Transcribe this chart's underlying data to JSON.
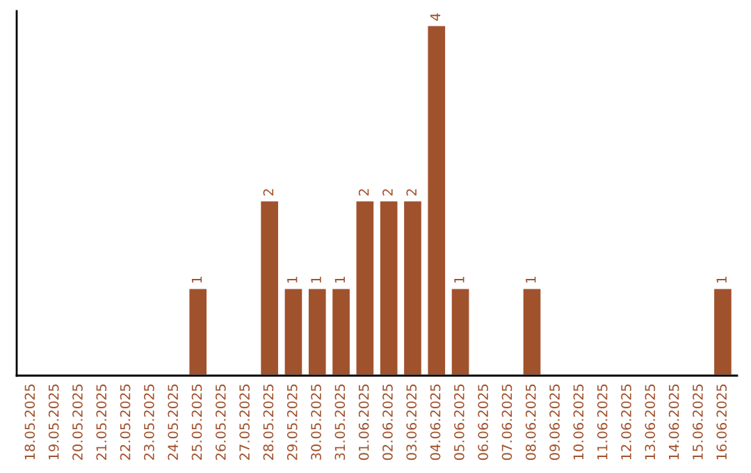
{
  "chart_data": {
    "type": "bar",
    "categories": [
      "18.05.2025",
      "19.05.2025",
      "20.05.2025",
      "21.05.2025",
      "22.05.2025",
      "23.05.2025",
      "24.05.2025",
      "25.05.2025",
      "26.05.2025",
      "27.05.2025",
      "28.05.2025",
      "29.05.2025",
      "30.05.2025",
      "31.05.2025",
      "01.06.2025",
      "02.06.2025",
      "03.06.2025",
      "04.06.2025",
      "05.06.2025",
      "06.06.2025",
      "07.06.2025",
      "08.06.2025",
      "09.06.2025",
      "10.06.2025",
      "11.06.2025",
      "12.06.2025",
      "13.06.2025",
      "14.06.2025",
      "15.06.2025",
      "16.06.2025"
    ],
    "values": [
      0,
      0,
      0,
      0,
      0,
      0,
      0,
      1,
      0,
      0,
      2,
      1,
      1,
      1,
      2,
      2,
      2,
      4,
      1,
      0,
      0,
      1,
      0,
      0,
      0,
      0,
      0,
      0,
      0,
      1
    ],
    "value_labels": [
      null,
      null,
      null,
      null,
      null,
      null,
      null,
      "1",
      null,
      null,
      "2",
      "1",
      "1",
      "1",
      "2",
      "2",
      "2",
      "4",
      "1",
      null,
      null,
      "1",
      null,
      null,
      null,
      null,
      null,
      null,
      null,
      "1"
    ],
    "color": "#a0522d",
    "tick_labels": "x",
    "grid": false,
    "legend": false
  }
}
